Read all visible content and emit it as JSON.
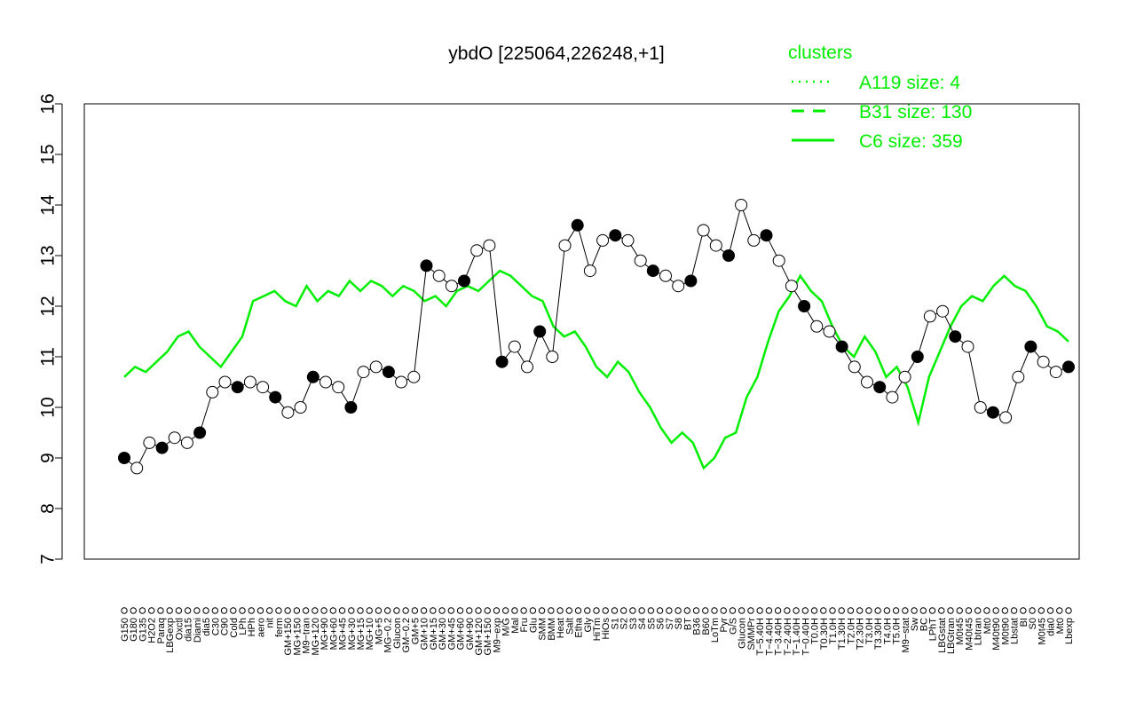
{
  "chart_data": {
    "type": "line",
    "title": "ybdO [225064,226248,+1]",
    "xlabel": "",
    "ylabel": "",
    "ylim": [
      7,
      16
    ],
    "yticks": [
      7,
      8,
      9,
      10,
      11,
      12,
      13,
      14,
      15,
      16
    ],
    "grid": false,
    "legend": {
      "title": "clusters",
      "position": "top-right",
      "entries": [
        {
          "label": "A119 size: 4",
          "style": "dotted",
          "color": "#00ee00"
        },
        {
          "label": "B31 size: 130",
          "style": "dashed",
          "color": "#00ee00"
        },
        {
          "label": "C6 size: 359",
          "style": "solid",
          "color": "#00ee00"
        }
      ]
    },
    "x_tick_labels": [
      "G150",
      "G180",
      "G135",
      "H2O2",
      "Paraq",
      "LBGexp",
      "Oxctl",
      "dia15",
      "Diami",
      "dia5",
      "C30",
      "C90",
      "Cold",
      "LPh",
      "HPh",
      "aero",
      "nit",
      "ferm",
      "GM+150",
      "MG+150",
      "M9−tran",
      "MG+120",
      "MG+90",
      "MG+60",
      "MG+45",
      "MG+30",
      "MG+15",
      "MG+10",
      "MG+5",
      "MG−0.2",
      "Glucon",
      "GM−0.2",
      "GM+5",
      "GM+10",
      "GM+15",
      "GM+30",
      "GM+45",
      "GM+60",
      "GM+90",
      "GM+120",
      "GM+150",
      "M9−exp",
      "M/G",
      "Mal",
      "Fru",
      "Glu",
      "SMM",
      "BMM",
      "Heat",
      "Salt",
      "Etha",
      "Gly",
      "HiTm",
      "HiOs",
      "S1",
      "S2",
      "S3",
      "S4",
      "S5",
      "S6",
      "S7",
      "S8",
      "BT",
      "B36",
      "B60",
      "LoTm",
      "Pyr",
      "G/S",
      "Glucon",
      "SMMPr",
      "T−5.40H",
      "T−4.40H",
      "T−3.40H",
      "T−2.40H",
      "T−1.40H",
      "T−0.40H",
      "T0.0H",
      "T0.30H",
      "T1.0H",
      "T1.30H",
      "T2.0H",
      "T2.30H",
      "T3.0H",
      "T3.30H",
      "T4.0H",
      "T5.0H",
      "M9−stat",
      "Sw",
      "BC",
      "LPhT",
      "LBGstat",
      "LBGtran",
      "M0t45",
      "M40t45",
      "Lbtran",
      "Mt0",
      "M40t90",
      "M0t90",
      "Lbstat",
      "BI",
      "S0",
      "M0t45",
      "dia0",
      "Mt0",
      "Lbexp"
    ],
    "series": [
      {
        "style": "points+line",
        "color": "#000000",
        "values": [
          9.0,
          8.8,
          9.3,
          9.2,
          9.4,
          9.3,
          9.5,
          10.3,
          10.5,
          10.4,
          10.5,
          10.4,
          10.2,
          9.9,
          10.0,
          10.6,
          10.5,
          10.4,
          10.0,
          10.7,
          10.8,
          10.7,
          10.5,
          10.6,
          12.8,
          12.6,
          12.4,
          12.5,
          13.1,
          13.2,
          10.9,
          11.2,
          10.8,
          11.5,
          11.0,
          13.2,
          13.6,
          12.7,
          13.3,
          13.4,
          13.3,
          12.9,
          12.7,
          12.6,
          12.4,
          12.5,
          13.5,
          13.2,
          13.0,
          14.0,
          13.3,
          13.4,
          12.9,
          12.4,
          12.0,
          11.6,
          11.5,
          11.2,
          10.8,
          10.5,
          10.4,
          10.2,
          10.6,
          11.0,
          11.8,
          11.9,
          11.4,
          11.2,
          10.0,
          9.9,
          9.8,
          10.6,
          11.2,
          10.9,
          10.7,
          10.8
        ]
      },
      {
        "name": "",
        "style": "solid",
        "color": "#00ee00",
        "values": [
          10.6,
          10.8,
          10.7,
          10.9,
          11.1,
          11.4,
          11.5,
          11.2,
          11.0,
          10.8,
          11.1,
          11.4,
          12.1,
          12.2,
          12.3,
          12.1,
          12.0,
          12.4,
          12.1,
          12.3,
          12.2,
          12.5,
          12.3,
          12.5,
          12.4,
          12.2,
          12.4,
          12.3,
          12.1,
          12.2,
          12.0,
          12.3,
          12.4,
          12.3,
          12.5,
          12.7,
          12.6,
          12.4,
          12.2,
          12.1,
          11.6,
          11.4,
          11.5,
          11.2,
          10.8,
          10.6,
          10.9,
          10.7,
          10.3,
          10.0,
          9.6,
          9.3,
          9.5,
          9.3,
          8.8,
          9.0,
          9.4,
          9.5,
          10.2,
          10.6,
          11.3,
          11.9,
          12.2,
          12.6,
          12.3,
          12.1,
          11.6,
          11.2,
          11.0,
          11.4,
          11.1,
          10.6,
          10.8,
          10.4,
          9.7,
          10.6,
          11.1,
          11.6,
          12.0,
          12.2,
          12.1,
          12.4,
          12.6,
          12.4,
          12.3,
          12.0,
          11.6,
          11.5,
          11.3
        ]
      }
    ]
  }
}
